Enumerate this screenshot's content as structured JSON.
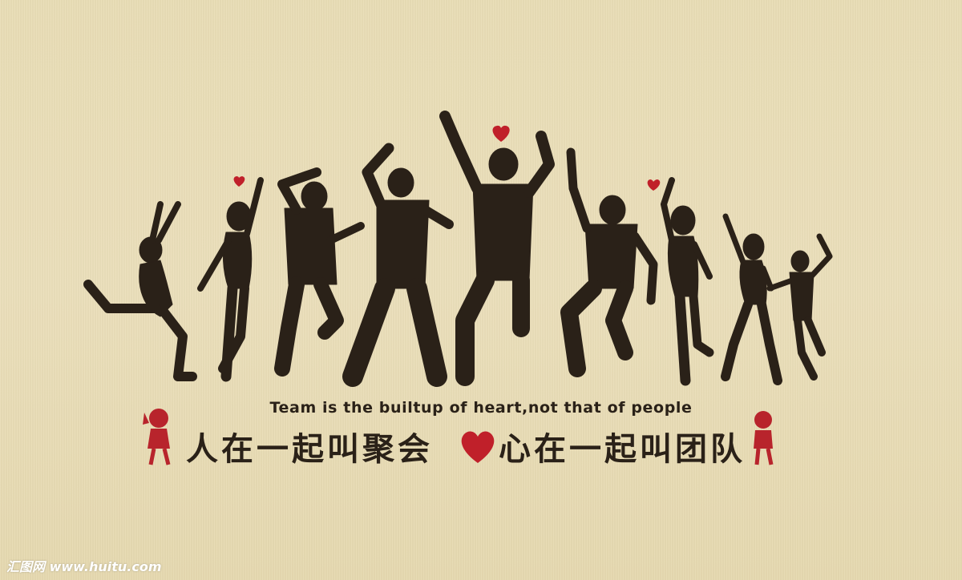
{
  "tagline": "Team is the builtup of heart,not that of people",
  "slogan_left": "人在一起叫聚会",
  "slogan_right": "心在一起叫团队",
  "watermark": "汇图网 www.huitu.com",
  "colors": {
    "wall": "#e9ddb6",
    "silhouette": "#2a2118",
    "heart": "#c0202a",
    "girl": "#b8242c"
  },
  "icons": [
    "dancing-silhouettes",
    "heart-icon",
    "girl-figure-icon"
  ]
}
